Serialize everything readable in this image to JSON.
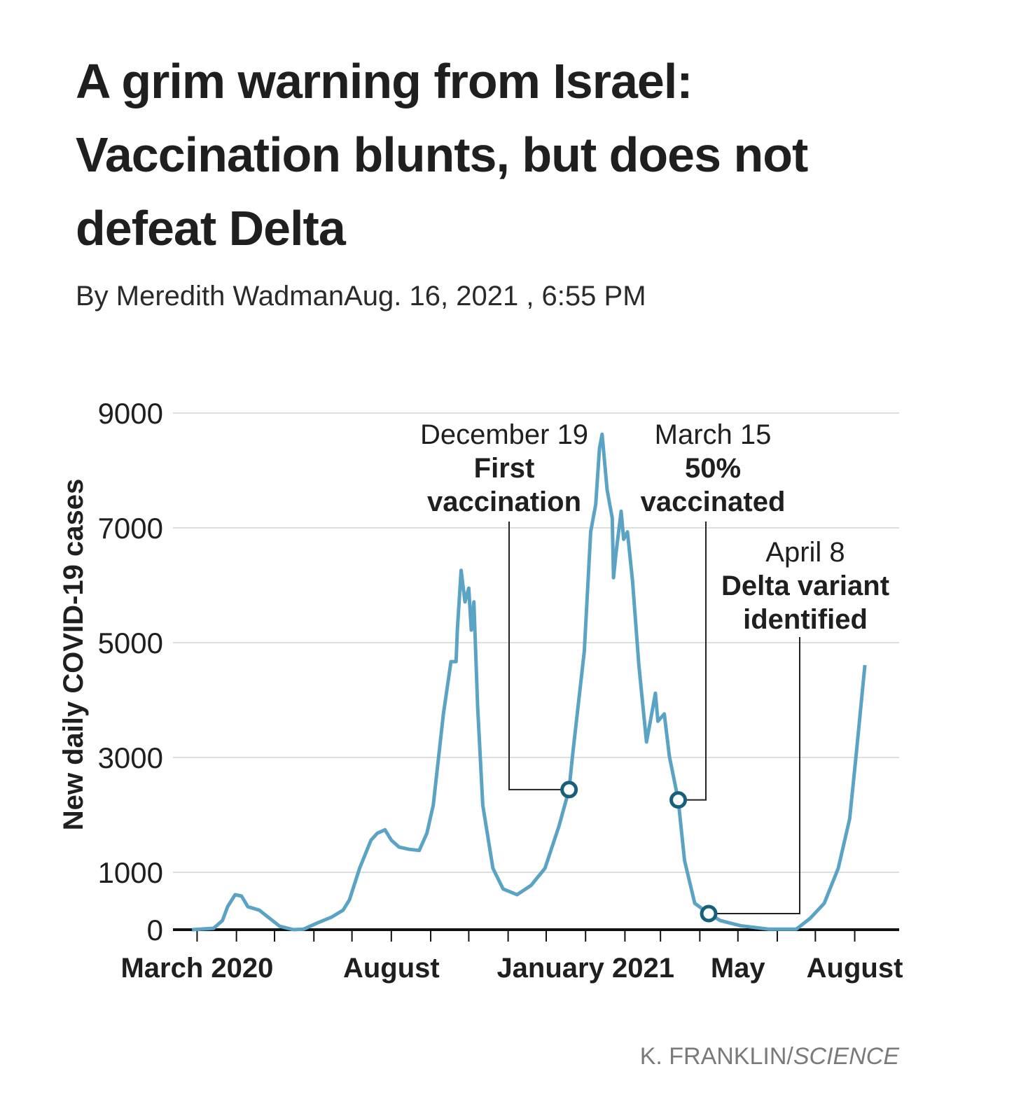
{
  "title": [
    "A grim warning from Israel:",
    "Vaccination blunts, but does not",
    "defeat Delta"
  ],
  "byline": "By Meredith WadmanAug. 16, 2021 , 6:55 PM",
  "credit": {
    "name": "K. FRANKLIN/",
    "publication": "SCIENCE"
  },
  "chart_data": {
    "type": "line",
    "ylabel": "New daily COVID-19 cases",
    "color": "#5ba3c4",
    "marker_color": "#17607c",
    "grid": true,
    "ylim": [
      0,
      9000
    ],
    "yticks": [
      0,
      1000,
      3000,
      5000,
      7000,
      9000
    ],
    "xlim": [
      "2020-02-11",
      "2021-09-05"
    ],
    "xticks": [
      {
        "value": "2020-03-01",
        "label": "March 2020"
      },
      {
        "value": "2020-04-01",
        "label": null
      },
      {
        "value": "2020-05-01",
        "label": null
      },
      {
        "value": "2020-06-01",
        "label": null
      },
      {
        "value": "2020-07-01",
        "label": null
      },
      {
        "value": "2020-08-01",
        "label": "August"
      },
      {
        "value": "2020-09-01",
        "label": null
      },
      {
        "value": "2020-10-01",
        "label": null
      },
      {
        "value": "2020-11-01",
        "label": null
      },
      {
        "value": "2020-12-01",
        "label": null
      },
      {
        "value": "2021-01-01",
        "label": "January 2021"
      },
      {
        "value": "2021-02-01",
        "label": null
      },
      {
        "value": "2021-03-01",
        "label": null
      },
      {
        "value": "2021-04-01",
        "label": null
      },
      {
        "value": "2021-05-01",
        "label": "May"
      },
      {
        "value": "2021-06-01",
        "label": null
      },
      {
        "value": "2021-07-01",
        "label": null
      },
      {
        "value": "2021-08-01",
        "label": "August"
      }
    ],
    "x": [
      "2020-02-26",
      "2020-03-14",
      "2020-03-21",
      "2020-03-25",
      "2020-03-31",
      "2020-04-05",
      "2020-04-10",
      "2020-04-19",
      "2020-04-27",
      "2020-05-05",
      "2020-05-16",
      "2020-05-24",
      "2020-06-04",
      "2020-06-15",
      "2020-06-24",
      "2020-06-29",
      "2020-07-07",
      "2020-07-16",
      "2020-07-21",
      "2020-07-27",
      "2020-08-01",
      "2020-08-07",
      "2020-08-15",
      "2020-08-23",
      "2020-08-29",
      "2020-09-03",
      "2020-09-11",
      "2020-09-17",
      "2020-09-21",
      "2020-09-22",
      "2020-09-25",
      "2020-09-28",
      "2020-10-01",
      "2020-10-03",
      "2020-10-05",
      "2020-10-08",
      "2020-10-12",
      "2020-10-20",
      "2020-10-28",
      "2020-11-08",
      "2020-11-19",
      "2020-11-30",
      "2020-12-11",
      "2020-12-19",
      "2020-12-22",
      "2020-12-31",
      "2021-01-05",
      "2021-01-09",
      "2021-01-12",
      "2021-01-14",
      "2021-01-18",
      "2021-01-22",
      "2021-01-23",
      "2021-01-25",
      "2021-01-29",
      "2021-01-31",
      "2021-02-03",
      "2021-02-07",
      "2021-02-12",
      "2021-02-18",
      "2021-02-21",
      "2021-02-25",
      "2021-02-27",
      "2021-03-04",
      "2021-03-08",
      "2021-03-15",
      "2021-03-20",
      "2021-03-28",
      "2021-04-08",
      "2021-04-17",
      "2021-05-03",
      "2021-05-25",
      "2021-06-16",
      "2021-06-27",
      "2021-07-08",
      "2021-07-19",
      "2021-07-28",
      "2021-08-02",
      "2021-08-09"
    ],
    "values": [
      0,
      25,
      160,
      400,
      610,
      585,
      400,
      340,
      200,
      60,
      0,
      10,
      120,
      220,
      340,
      520,
      1070,
      1560,
      1680,
      1740,
      1560,
      1440,
      1400,
      1380,
      1680,
      2170,
      3760,
      4670,
      4670,
      5220,
      6260,
      5710,
      5950,
      5220,
      5710,
      3880,
      2170,
      1070,
      710,
      610,
      770,
      1070,
      1800,
      2440,
      3090,
      4850,
      6930,
      7410,
      8390,
      8630,
      7660,
      7170,
      6130,
      6560,
      7290,
      6800,
      6930,
      6070,
      4610,
      3270,
      3630,
      4120,
      3630,
      3760,
      3020,
      2260,
      1200,
      460,
      280,
      160,
      70,
      10,
      10,
      200,
      460,
      1070,
      1930,
      3020,
      4610
    ],
    "annotations": [
      {
        "date": "2020-12-19",
        "value": 2440,
        "date_label": "December 19",
        "text": [
          "First",
          "vaccination"
        ]
      },
      {
        "date": "2021-03-15",
        "value": 2260,
        "date_label": "March 15",
        "text": [
          "50%",
          "vaccinated"
        ]
      },
      {
        "date": "2021-04-08",
        "value": 280,
        "date_label": "April 8",
        "text": [
          "Delta variant",
          "identified"
        ]
      }
    ]
  }
}
